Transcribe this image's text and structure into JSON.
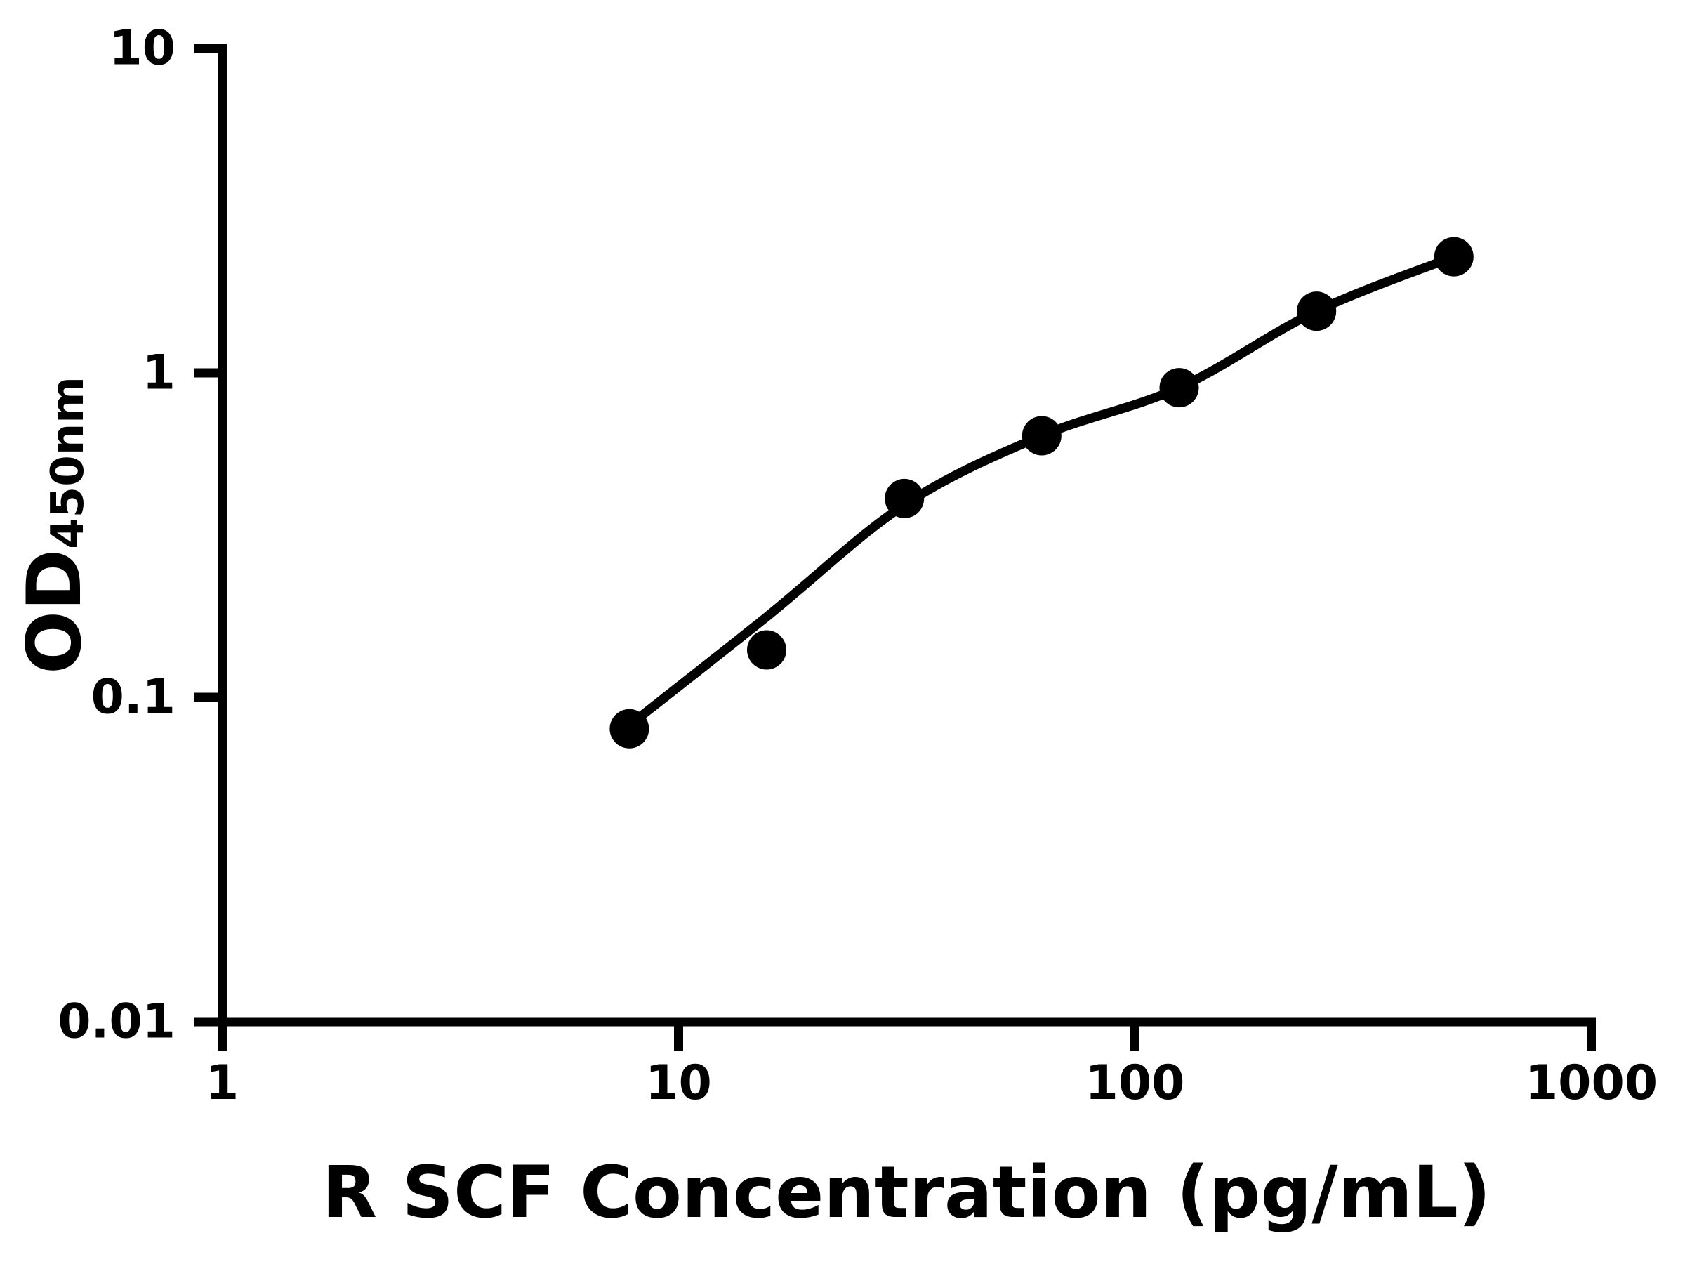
{
  "chart_data": {
    "type": "scatter",
    "title": "",
    "xlabel": "R SCF Concentration (pg/mL)",
    "ylabel_main": "OD",
    "ylabel_subscript": "450nm",
    "ylabel_text": "OD450nm",
    "x_scale": "log10",
    "y_scale": "log10",
    "xlim": [
      1,
      1000
    ],
    "ylim": [
      0.01,
      10
    ],
    "grid": false,
    "legend": null,
    "x_ticks": [
      {
        "value": 1,
        "label": "1"
      },
      {
        "value": 10,
        "label": "10"
      },
      {
        "value": 100,
        "label": "100"
      },
      {
        "value": 1000,
        "label": "1000"
      }
    ],
    "y_ticks": [
      {
        "value": 10,
        "label": "10"
      },
      {
        "value": 1,
        "label": "1"
      },
      {
        "value": 0.1,
        "label": "0.1"
      },
      {
        "value": 0.01,
        "label": "0.01"
      }
    ],
    "colors": {
      "points": "#000000",
      "curve": "#000000",
      "axis": "#000000",
      "background": "#ffffff"
    },
    "series": [
      {
        "name": "standard-points",
        "type": "scatter",
        "marker": "filled-circle",
        "x": [
          7.8,
          15.6,
          31.25,
          62.5,
          125,
          250,
          500
        ],
        "y": [
          0.08,
          0.14,
          0.41,
          0.64,
          0.9,
          1.55,
          2.28
        ]
      },
      {
        "name": "fitted-curve",
        "type": "line",
        "x": [
          7.8,
          15.6,
          31.25,
          62.5,
          125,
          250,
          500
        ],
        "y": [
          0.082,
          0.177,
          0.392,
          0.64,
          0.9,
          1.55,
          2.28
        ]
      }
    ]
  }
}
